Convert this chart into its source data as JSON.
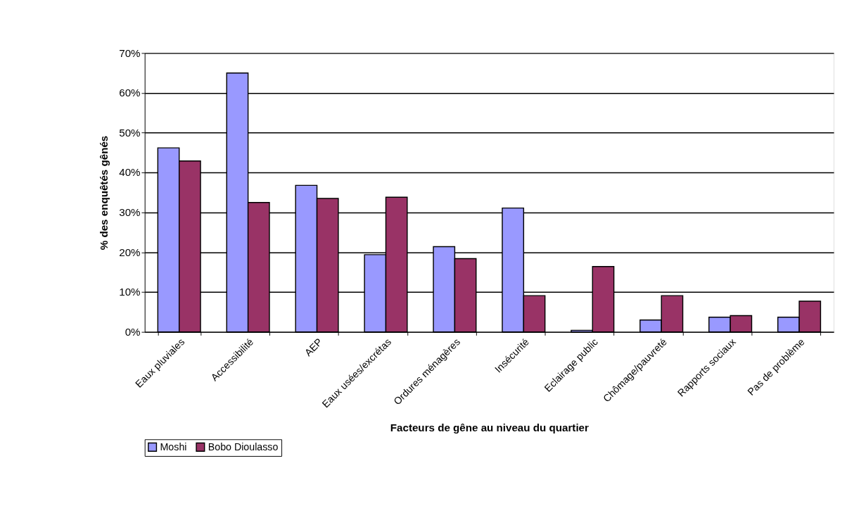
{
  "chart_data": {
    "type": "bar",
    "xlabel": "Facteurs de gêne au niveau du quartier",
    "ylabel": "% des enquêtés gênés",
    "categories": [
      "Eaux pluviales",
      "Accessibilité",
      "AEP",
      "Eaux usées/excrétas",
      "Ordures ménagères",
      "Insécurité",
      "Eclairage public",
      "Chômage/pauvreté",
      "Rapports sociaux",
      "Pas de problème"
    ],
    "series": [
      {
        "name": "Moshi",
        "color": "#9999ff",
        "values": [
          46.2,
          65.0,
          36.8,
          19.4,
          21.4,
          31.1,
          0.4,
          3.0,
          3.7,
          3.7
        ]
      },
      {
        "name": "Bobo Dioulasso",
        "color": "#993366",
        "values": [
          42.9,
          32.5,
          33.5,
          33.8,
          18.4,
          9.1,
          16.4,
          9.1,
          4.1,
          7.7
        ]
      }
    ],
    "ylim": [
      0,
      70
    ],
    "yticks": [
      {
        "value": 0,
        "label": "0%"
      },
      {
        "value": 10,
        "label": "10%"
      },
      {
        "value": 20,
        "label": "20%"
      },
      {
        "value": 30,
        "label": "30%"
      },
      {
        "value": 40,
        "label": "40%"
      },
      {
        "value": 50,
        "label": "50%"
      },
      {
        "value": 60,
        "label": "60%"
      },
      {
        "value": 70,
        "label": "70%"
      }
    ],
    "grid": "y",
    "legend": "bottom"
  }
}
